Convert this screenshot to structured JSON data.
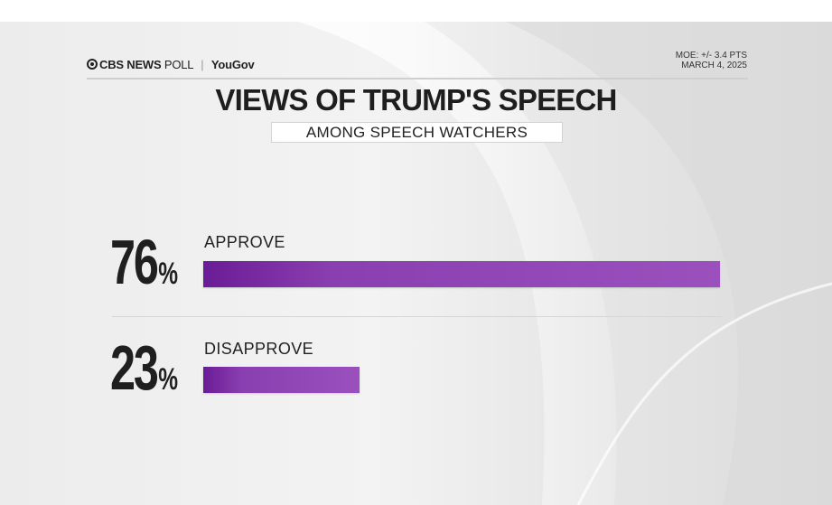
{
  "brand": {
    "network": "CBS NEWS",
    "poll": "POLL",
    "separator": "|",
    "partner": "YouGov"
  },
  "meta": {
    "moe": "MOE: +/- 3.4 PTS",
    "date": "MARCH 4, 2025"
  },
  "colors": {
    "bar": "#8e43b5",
    "bar_dark": "#6a1c96",
    "text": "#1e1e1e"
  },
  "chart_data": {
    "type": "bar",
    "orientation": "horizontal",
    "title": "VIEWS OF TRUMP'S SPEECH",
    "subtitle": "AMONG SPEECH WATCHERS",
    "categories": [
      "APPROVE",
      "DISAPPROVE"
    ],
    "values": [
      76,
      23
    ],
    "unit": "%",
    "value_labels": [
      "76",
      "23"
    ],
    "grid": false
  }
}
